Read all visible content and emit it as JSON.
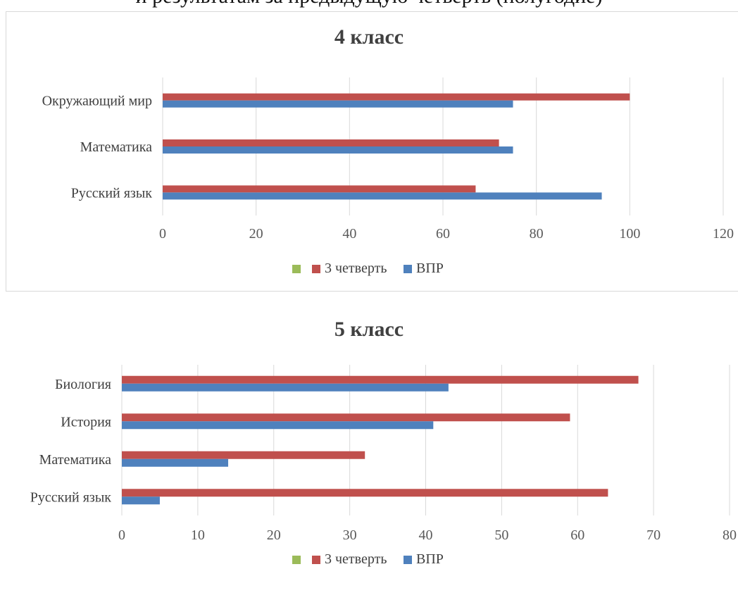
{
  "heading": "и результатам за предыдущую четверть (полугодие)",
  "chart_data": [
    {
      "type": "bar",
      "orientation": "horizontal",
      "title": "4 класс",
      "categories": [
        "Окружающий мир",
        "Математика",
        "Русский язык"
      ],
      "series": [
        {
          "name": "",
          "color": "#9bbb59",
          "values": [
            null,
            null,
            null
          ]
        },
        {
          "name": "3 четверть",
          "color": "#c0504d",
          "values": [
            100,
            72,
            67
          ]
        },
        {
          "name": "ВПР",
          "color": "#4f81bd",
          "values": [
            75,
            75,
            94
          ]
        }
      ],
      "xlim": [
        0,
        120
      ],
      "xticks": [
        0,
        20,
        40,
        60,
        80,
        100,
        120
      ],
      "grid": true,
      "legend": "bottom"
    },
    {
      "type": "bar",
      "orientation": "horizontal",
      "title": "5 класс",
      "categories": [
        "Биология",
        "История",
        "Математика",
        "Русский язык"
      ],
      "series": [
        {
          "name": "",
          "color": "#9bbb59",
          "values": [
            null,
            null,
            null,
            null
          ]
        },
        {
          "name": "3 четверть",
          "color": "#c0504d",
          "values": [
            68,
            59,
            32,
            64
          ]
        },
        {
          "name": "ВПР",
          "color": "#4f81bd",
          "values": [
            43,
            41,
            14,
            5
          ]
        }
      ],
      "xlim": [
        0,
        80
      ],
      "xticks": [
        0,
        10,
        20,
        30,
        40,
        50,
        60,
        70,
        80
      ],
      "grid": true,
      "legend": "bottom"
    }
  ]
}
